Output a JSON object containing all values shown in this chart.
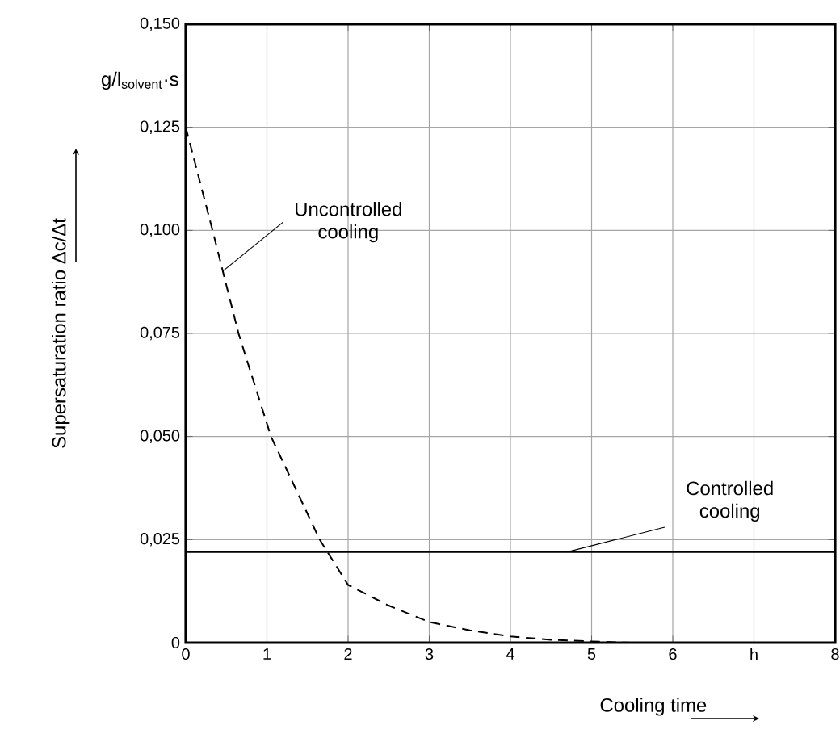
{
  "chart_data": {
    "type": "line",
    "xlabel": "Cooling time",
    "ylabel": "Supersaturation ratio Δc/Δt",
    "xlim": [
      0,
      8
    ],
    "ylim": [
      0,
      0.15
    ],
    "xticks": [
      0,
      1,
      2,
      3,
      4,
      5,
      6,
      {
        "value": 7,
        "label": "h"
      },
      8
    ],
    "yticks": [
      {
        "value": 0,
        "label": "0"
      },
      {
        "value": 0.025,
        "label": "0,025"
      },
      {
        "value": 0.05,
        "label": "0,050"
      },
      {
        "value": 0.075,
        "label": "0,075"
      },
      {
        "value": 0.1,
        "label": "0,100"
      },
      {
        "value": 0.125,
        "label": "0,125"
      },
      {
        "value": 0.15,
        "label": "0,150"
      }
    ],
    "grid": true,
    "marker": "none",
    "series": [
      {
        "color": "#000000",
        "line_style": "dashed",
        "x": [
          0,
          0.33,
          0.65,
          1.05,
          1.65,
          2,
          2.5,
          3,
          3.5,
          4,
          4.5,
          5,
          5.5
        ],
        "values": [
          0.125,
          0.1,
          0.075,
          0.05,
          0.025,
          0.014,
          0.009,
          0.005,
          0.003,
          0.0015,
          0.0007,
          0.0003,
          0
        ]
      },
      {
        "color": "#000000",
        "line_style": "solid",
        "x": [
          0,
          8
        ],
        "values": [
          0.022,
          0.022
        ]
      }
    ],
    "annotations": [
      {
        "text": "Uncontrolled cooling",
        "x": 0.45,
        "y": 0.09
      },
      {
        "text": "Controlled cooling",
        "x": 4.7,
        "y": 0.022
      },
      "g/l$_{solvent}$·s"
    ]
  }
}
